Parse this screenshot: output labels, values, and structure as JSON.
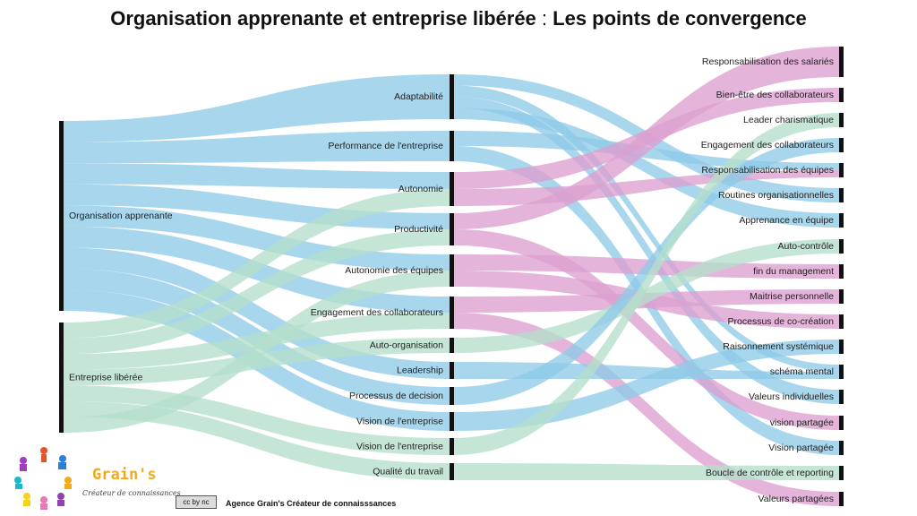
{
  "title": {
    "part1": "Organisation apprenante et entreprise libérée",
    "separator": " : ",
    "part2": "Les points de convergence"
  },
  "colors": {
    "blue": "#8ecbe8",
    "green": "#b5dfcb",
    "pink": "#dc9fd0",
    "node": "#111111"
  },
  "diagram": {
    "left": [
      "Organisation apprenante",
      "Entreprise libérée"
    ],
    "middle": [
      "Adaptabilité",
      "Performance de l'entreprise",
      "Autonomie",
      "Productivité",
      "Autonomie des équipes",
      "Engagement des collaborateurs",
      "Auto-organisation",
      "Leadership",
      "Processus de decision",
      "Vision de l'entreprise",
      "Vision de l'entreprise",
      "Qualité du travail"
    ],
    "right": [
      "Responsabilisation des salariés",
      "Bien-être des collaborateurs",
      "Leader charismatique",
      "Engagement des collaborateurs",
      "Responsabilisation des équipes",
      "Routines organisationnelles",
      "Apprenance en équipe",
      "Auto-contrôle",
      "fin du management",
      "Maitrise personnelle",
      "Processus de co-création",
      "Raisonnement systémique",
      "schéma mental",
      "Valeurs individuelles",
      "vision partagée",
      "Vision partagée",
      "Boucle de contrôle et reporting",
      "Valeurs partagées"
    ]
  },
  "footer": {
    "license": "cc by nc",
    "text": "Agence  Grain's Créateur de connaisssances"
  },
  "logo": {
    "name": "Grain's",
    "tagline": "Créateur de connaissances"
  }
}
